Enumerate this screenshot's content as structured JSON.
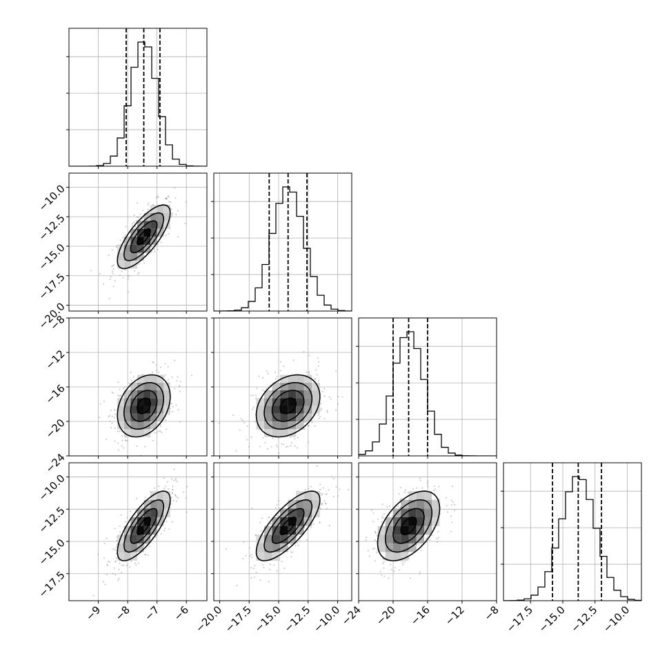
{
  "chart_data": {
    "type": "corner",
    "parameters": [
      {
        "id": "p1",
        "ticks": [
          -9,
          -8,
          -7,
          -6
        ],
        "tick_labels": [
          "−9",
          "−8",
          "−7",
          "−6"
        ],
        "range": [
          -10.0,
          -5.3
        ],
        "mean": -7.45,
        "sigma": 0.45,
        "quantiles": [
          -8.05,
          -7.45,
          -6.9
        ]
      },
      {
        "id": "p2",
        "ticks": [
          -20.0,
          -17.5,
          -15.0,
          -12.5,
          -10.0
        ],
        "tick_labels": [
          "−20.0",
          "−17.5",
          "−15.0",
          "−12.5",
          "−10.0"
        ],
        "range": [
          -20.5,
          -8.8
        ],
        "mean": -14.2,
        "sigma": 1.35,
        "quantiles": [
          -15.8,
          -14.2,
          -12.6
        ]
      },
      {
        "id": "p3",
        "ticks": [
          -24,
          -20,
          -16,
          -12,
          -8
        ],
        "tick_labels": [
          "−24",
          "−20",
          "−16",
          "−12",
          "−8"
        ],
        "range": [
          -24.0,
          -8.0
        ],
        "mean": -18.2,
        "sigma": 1.8,
        "quantiles": [
          -20.0,
          -18.2,
          -16.0
        ]
      },
      {
        "id": "p4",
        "ticks": [
          -17.5,
          -15.0,
          -12.5,
          -10.0
        ],
        "tick_labels": [
          "−17.5",
          "−15.0",
          "−12.5",
          "−10.0"
        ],
        "range": [
          -19.6,
          -8.9
        ],
        "mean": -13.8,
        "sigma": 1.35,
        "quantiles": [
          -15.8,
          -13.8,
          -12.0
        ]
      }
    ],
    "correlations": [
      [
        1,
        0.75,
        0.3,
        0.75
      ],
      [
        0.75,
        1,
        0.3,
        0.75
      ],
      [
        0.3,
        0.3,
        1,
        0.5
      ],
      [
        0.75,
        0.75,
        0.5,
        1
      ]
    ],
    "histogram_bins": 20,
    "quantile_levels": [
      0.16,
      0.5,
      0.84
    ],
    "contour_levels_sigma": [
      0.5,
      1.0,
      1.5,
      2.0
    ],
    "grid": true
  }
}
